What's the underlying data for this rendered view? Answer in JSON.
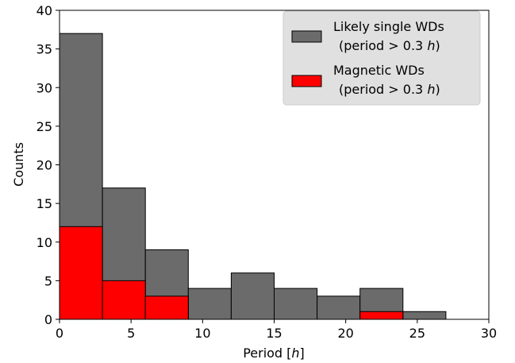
{
  "chart_data": {
    "type": "bar",
    "subtype": "histogram",
    "title": "",
    "xlabel": "Period",
    "xlabel_unit": "h",
    "ylabel": "Counts",
    "xlim": [
      0,
      30
    ],
    "ylim": [
      0,
      40
    ],
    "x_ticks": [
      0,
      5,
      10,
      15,
      20,
      25,
      30
    ],
    "y_ticks": [
      0,
      5,
      10,
      15,
      20,
      25,
      30,
      35,
      40
    ],
    "bin_edges": [
      0,
      3,
      6,
      9,
      12,
      15,
      18,
      21,
      24,
      27,
      30
    ],
    "grid": false,
    "legend_position": "top-right",
    "series": [
      {
        "name": "Likely single WDs (period > 0.3 h)",
        "legend_line1": "Likely single WDs",
        "legend_line2": "(period > 0.3",
        "legend_unit": "h",
        "legend_close": ")",
        "color": "#6b6b6b",
        "values": [
          37,
          17,
          9,
          4,
          6,
          4,
          3,
          4,
          1,
          0
        ]
      },
      {
        "name": "Magnetic WDs (period > 0.3 h)",
        "legend_line1": "Magnetic WDs",
        "legend_line2": "(period > 0.3",
        "legend_unit": "h",
        "legend_close": ")",
        "color": "#ff0000",
        "values": [
          12,
          5,
          3,
          0,
          0,
          0,
          0,
          1,
          0,
          0
        ]
      }
    ]
  }
}
